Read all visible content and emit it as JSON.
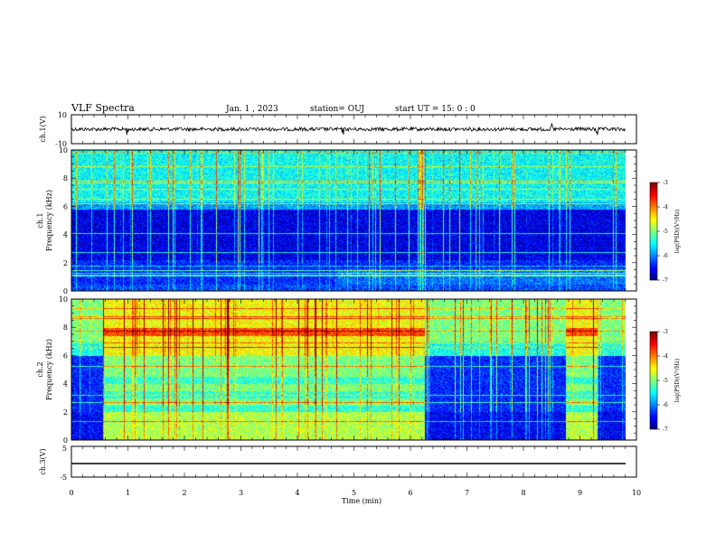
{
  "header": {
    "title": "VLF Spectra",
    "date": "Jan. 1 , 2023",
    "station": "station= OUJ",
    "start": "start UT = 15: 0 : 0"
  },
  "chart_data": [
    {
      "type": "line",
      "panel": "ch1-waveform",
      "ylabel": "ch.1(V)",
      "ylim": [
        -10,
        10
      ],
      "yticks": [
        "10",
        "-10"
      ],
      "x_range_min": [
        0,
        9.8
      ],
      "series": [
        {
          "baseline": 0,
          "noise_amplitude": 1.2,
          "spikes": [
            1.0,
            4.8,
            8.5,
            9.3
          ]
        }
      ]
    },
    {
      "type": "heatmap",
      "panel": "ch1-spectrogram",
      "ylabel": "ch.1\nFrequency (kHz)",
      "ylim": [
        0,
        10
      ],
      "yticks": [
        "0",
        "2",
        "4",
        "6",
        "8",
        "10"
      ],
      "xlim": [
        0,
        10
      ],
      "time_range": [
        0,
        9.8
      ],
      "colorbar": {
        "label": "log(PSD)(V²/Hz)",
        "range": [
          -7,
          -3
        ],
        "ticks": [
          "-3",
          "-4",
          "-5",
          "-6",
          "-7"
        ]
      }
    },
    {
      "type": "heatmap",
      "panel": "ch2-spectrogram",
      "ylabel": "ch.2\nFrequency (kHz)",
      "ylim": [
        0,
        10
      ],
      "yticks": [
        "0",
        "2",
        "4",
        "6",
        "8",
        "10"
      ],
      "xlim": [
        0,
        10
      ],
      "time_range": [
        0,
        9.8
      ],
      "segments": [
        {
          "from": 0.0,
          "to": 0.55,
          "state": "quiet"
        },
        {
          "from": 0.55,
          "to": 6.25,
          "state": "active"
        },
        {
          "from": 6.25,
          "to": 8.75,
          "state": "quiet"
        },
        {
          "from": 8.75,
          "to": 9.3,
          "state": "active"
        },
        {
          "from": 9.3,
          "to": 9.8,
          "state": "quiet"
        }
      ],
      "colorbar": {
        "label": "log(PSD)(V²/Hz)",
        "range": [
          -7,
          -3
        ],
        "ticks": [
          "-3",
          "-4",
          "-5",
          "-6",
          "-7"
        ]
      }
    },
    {
      "type": "line",
      "panel": "ch3-waveform",
      "ylabel": "ch.3(V)",
      "ylim": [
        -5,
        5
      ],
      "yticks": [
        "5",
        "-5"
      ],
      "series": [
        {
          "constant": -1.5
        }
      ]
    }
  ],
  "xaxis": {
    "label": "Time (min)",
    "ticks": [
      "0",
      "1",
      "2",
      "3",
      "4",
      "5",
      "6",
      "7",
      "8",
      "9",
      "10"
    ]
  }
}
